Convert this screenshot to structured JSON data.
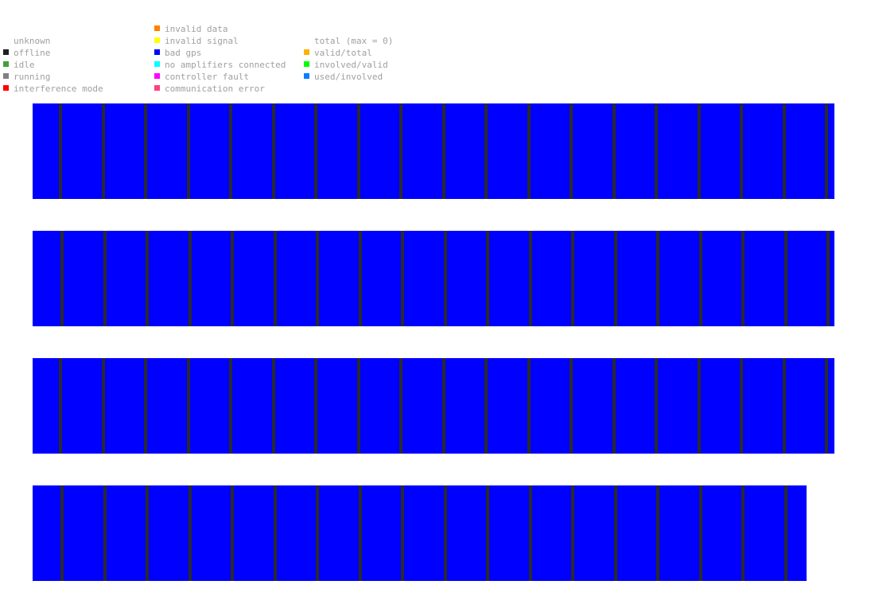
{
  "legend": {
    "status": [
      {
        "label": "unknown",
        "color": null
      },
      {
        "label": "offline",
        "color": "#202020"
      },
      {
        "label": "idle",
        "color": "#40a040"
      },
      {
        "label": "running",
        "color": "#808080"
      },
      {
        "label": "interference mode",
        "color": "#ff0000"
      }
    ],
    "errors": [
      {
        "label": "invalid data",
        "color": "#ff8000"
      },
      {
        "label": "invalid signal",
        "color": "#ffff00"
      },
      {
        "label": "bad gps",
        "color": "#0000ff"
      },
      {
        "label": "no amplifiers connected",
        "color": "#00ffff"
      },
      {
        "label": "controller fault",
        "color": "#ff00ff"
      },
      {
        "label": "communication error",
        "color": "#ff4080"
      }
    ],
    "totals": [
      {
        "label": "total (max = 0)",
        "color": null
      },
      {
        "label": "valid/total",
        "color": "#ffb000"
      },
      {
        "label": "involved/valid",
        "color": "#00ff00"
      },
      {
        "label": "used/involved",
        "color": "#0080ff"
      }
    ]
  },
  "chart_data": {
    "type": "timeline",
    "colors": {
      "bad_gps": "#0000ff",
      "offline": "#2a2a2a"
    },
    "rows": [
      {
        "blocks": [
          "bad gps",
          "bad gps",
          "bad gps",
          "bad gps",
          "bad gps",
          "bad gps",
          "bad gps",
          "bad gps",
          "bad gps",
          "bad gps",
          "bad gps",
          "bad gps",
          "bad gps",
          "bad gps",
          "bad gps",
          "bad gps",
          "bad gps",
          "bad gps",
          "bad gps",
          "bad gps"
        ]
      },
      {
        "blocks": [
          "bad gps",
          "bad gps",
          "bad gps",
          "bad gps",
          "bad gps",
          "bad gps",
          "bad gps",
          "bad gps",
          "bad gps",
          "bad gps",
          "bad gps",
          "bad gps",
          "bad gps",
          "bad gps",
          "bad gps",
          "bad gps",
          "bad gps",
          "bad gps",
          "bad gps",
          "bad gps"
        ]
      },
      {
        "blocks": [
          "bad gps",
          "bad gps",
          "bad gps",
          "bad gps",
          "bad gps",
          "bad gps",
          "bad gps",
          "bad gps",
          "bad gps",
          "bad gps",
          "bad gps",
          "bad gps",
          "bad gps",
          "bad gps",
          "bad gps",
          "bad gps",
          "bad gps",
          "bad gps",
          "bad gps",
          "bad gps"
        ]
      },
      {
        "blocks": [
          "bad gps",
          "bad gps",
          "bad gps",
          "bad gps",
          "bad gps",
          "bad gps",
          "bad gps",
          "bad gps",
          "bad gps",
          "bad gps",
          "bad gps",
          "bad gps",
          "bad gps",
          "bad gps",
          "bad gps",
          "bad gps",
          "bad gps",
          "bad gps"
        ]
      }
    ]
  }
}
